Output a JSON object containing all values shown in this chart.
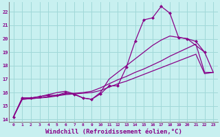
{
  "bg_color": "#c8f0f0",
  "grid_color": "#a0d8d8",
  "line_color": "#880088",
  "xlabel": "Windchill (Refroidissement éolien,°C)",
  "xlabel_fontsize": 6.5,
  "ylabel_vals": [
    14,
    15,
    16,
    17,
    18,
    19,
    20,
    21,
    22
  ],
  "xlim": [
    -0.5,
    23.5
  ],
  "ylim": [
    13.8,
    22.7
  ],
  "x_ticks": [
    0,
    1,
    2,
    3,
    4,
    5,
    6,
    7,
    8,
    9,
    10,
    11,
    12,
    13,
    14,
    15,
    16,
    17,
    18,
    19,
    20,
    21,
    22,
    23
  ],
  "series": [
    {
      "x": [
        0,
        1,
        2,
        3,
        4,
        5,
        6,
        7,
        8,
        9,
        10,
        11,
        12,
        13,
        14,
        15,
        16,
        17,
        18,
        19,
        20,
        21,
        22
      ],
      "y": [
        14.2,
        15.6,
        15.6,
        15.7,
        15.8,
        15.8,
        16.0,
        15.85,
        15.6,
        15.5,
        15.9,
        16.5,
        16.5,
        17.9,
        19.8,
        21.4,
        21.55,
        22.4,
        21.9,
        20.1,
        20.0,
        19.8,
        19.0
      ],
      "has_marker": true
    },
    {
      "x": [
        0,
        1,
        2,
        3,
        4,
        5,
        6,
        7,
        8,
        9,
        10,
        11,
        12,
        13,
        14,
        15,
        16,
        17,
        18,
        19,
        20,
        21,
        22,
        23
      ],
      "y": [
        14.2,
        15.6,
        15.6,
        15.7,
        15.85,
        16.0,
        16.1,
        15.9,
        15.6,
        15.5,
        16.0,
        17.0,
        17.5,
        18.0,
        18.5,
        19.0,
        19.5,
        19.9,
        20.2,
        20.1,
        20.0,
        19.5,
        19.0,
        17.5
      ],
      "has_marker": false
    },
    {
      "x": [
        0,
        1,
        2,
        3,
        4,
        5,
        6,
        7,
        8,
        9,
        10,
        11,
        12,
        13,
        14,
        15,
        16,
        17,
        18,
        19,
        20,
        21,
        22,
        23
      ],
      "y": [
        14.2,
        15.5,
        15.55,
        15.6,
        15.65,
        15.75,
        15.85,
        15.9,
        15.95,
        16.0,
        16.15,
        16.4,
        16.65,
        16.85,
        17.1,
        17.35,
        17.6,
        17.85,
        18.1,
        18.35,
        18.6,
        18.85,
        17.4,
        17.5
      ],
      "has_marker": false
    },
    {
      "x": [
        0,
        1,
        2,
        3,
        4,
        5,
        6,
        7,
        8,
        9,
        10,
        11,
        12,
        13,
        14,
        15,
        16,
        17,
        18,
        19,
        20,
        21,
        22,
        23
      ],
      "y": [
        14.2,
        15.5,
        15.55,
        15.6,
        15.7,
        15.8,
        15.9,
        15.95,
        16.0,
        16.1,
        16.35,
        16.65,
        16.95,
        17.2,
        17.5,
        17.75,
        18.05,
        18.35,
        18.7,
        19.0,
        19.3,
        19.6,
        17.5,
        17.5
      ],
      "has_marker": false
    }
  ]
}
